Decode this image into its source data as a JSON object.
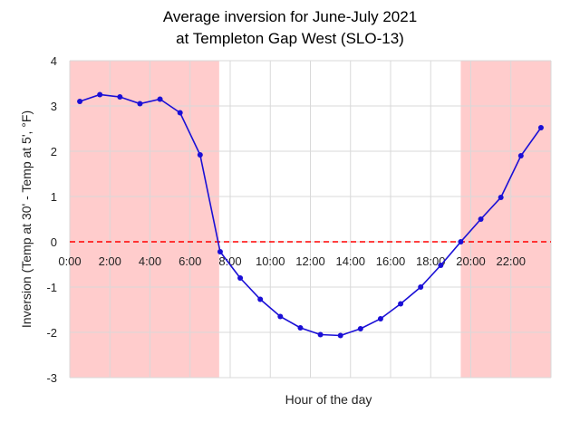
{
  "chart_data": {
    "type": "line",
    "title_line1": "Average inversion for June-July 2021",
    "title_line2": "at Templeton Gap West (SLO-13)",
    "xlabel": "Hour of the day",
    "ylabel": "Inversion (Temp at 30' - Temp at 5', °F)",
    "xlim": [
      0,
      24
    ],
    "ylim": [
      -3,
      4
    ],
    "x_tick_labels": [
      "0:00",
      "2:00",
      "4:00",
      "6:00",
      "8:00",
      "10:00",
      "12:00",
      "14:00",
      "16:00",
      "18:00",
      "20:00",
      "22:00"
    ],
    "y_ticks": [
      4,
      3,
      2,
      1,
      0,
      -1,
      -2,
      -3
    ],
    "grid": true,
    "shaded_ranges": [
      [
        0,
        7.45
      ],
      [
        19.5,
        24
      ]
    ],
    "reference_line": 0,
    "colors": {
      "series": "#1a0fd6",
      "shade": "#ffcccc",
      "reference": "#ff0000",
      "grid": "#d9d9d9"
    },
    "x": [
      0.5,
      1.5,
      2.5,
      3.5,
      4.5,
      5.5,
      6.5,
      7.5,
      8.5,
      9.5,
      10.5,
      11.5,
      12.5,
      13.5,
      14.5,
      15.5,
      16.5,
      17.5,
      18.5,
      19.5,
      20.5,
      21.5,
      22.5,
      23.5
    ],
    "values": [
      3.1,
      3.25,
      3.2,
      3.05,
      3.15,
      2.85,
      1.92,
      -0.22,
      -0.8,
      -1.27,
      -1.65,
      -1.9,
      -2.05,
      -2.07,
      -1.92,
      -1.7,
      -1.37,
      -1.0,
      -0.52,
      0.0,
      0.5,
      0.98,
      1.9,
      2.52
    ]
  }
}
